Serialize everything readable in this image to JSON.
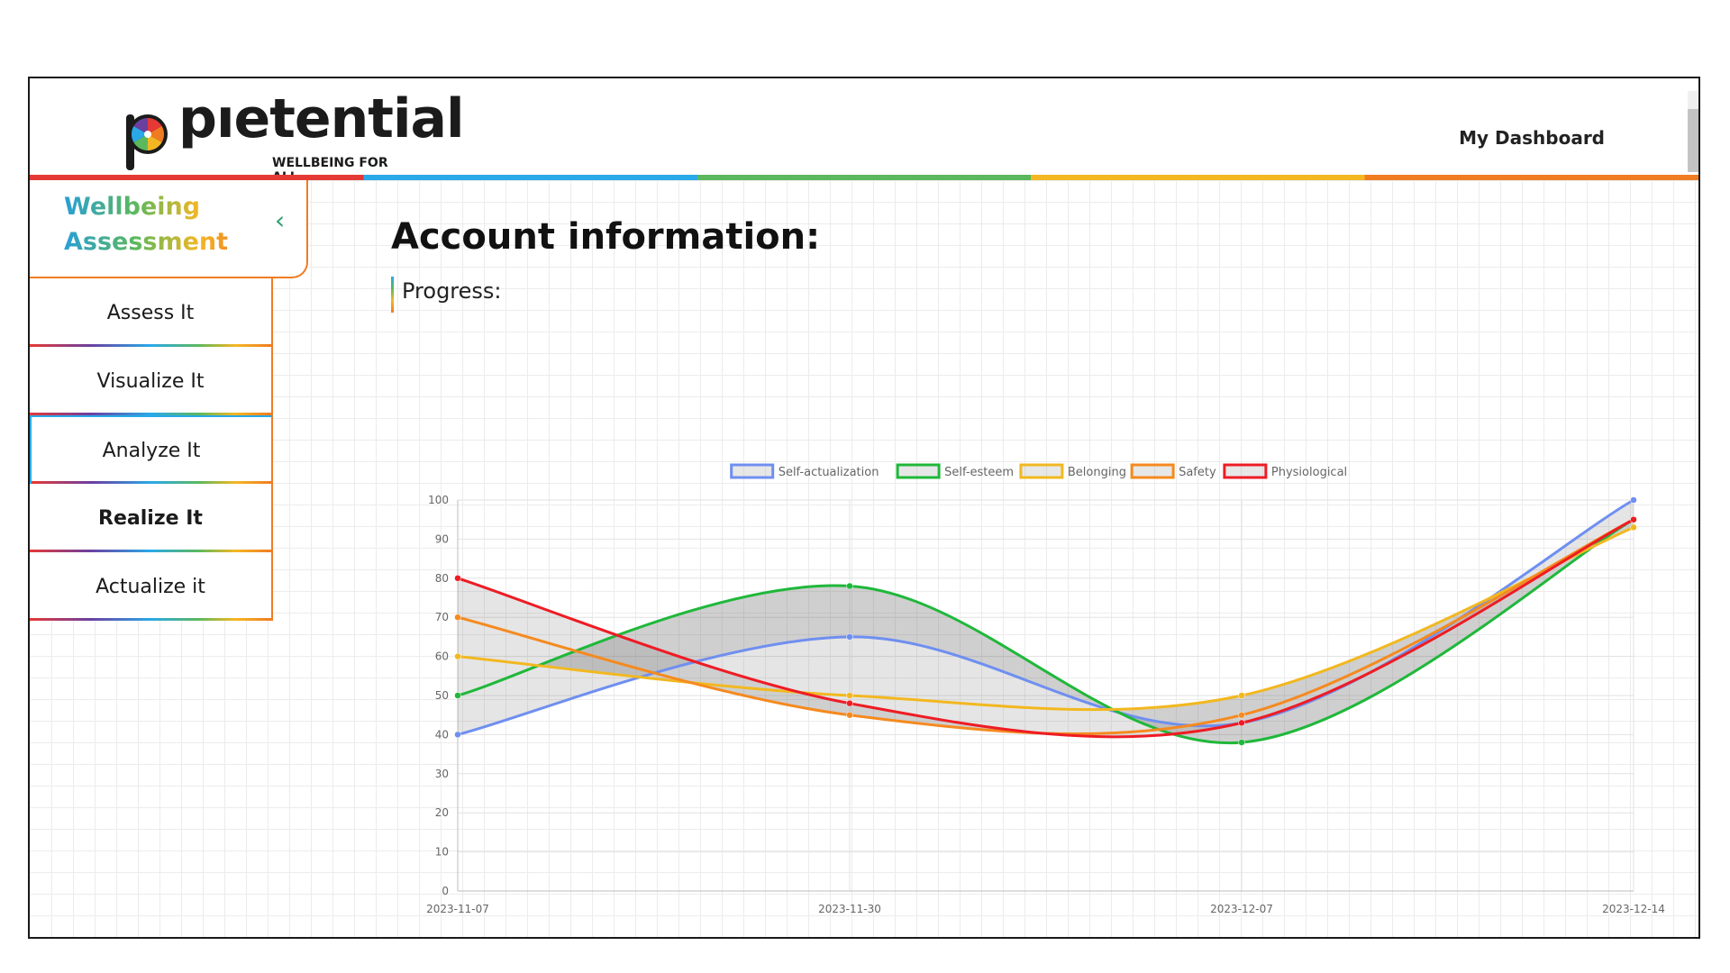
{
  "header": {
    "logo_text": "pıetential",
    "tagline": "WELLBEING FOR ALL.",
    "dashboard_link": "My Dashboard"
  },
  "sidebar": {
    "title_line1": "Wellbeing",
    "title_line2": "Assessment",
    "collapse_icon": "chevron-left-icon",
    "items": [
      {
        "label": "Assess It"
      },
      {
        "label": "Visualize It"
      },
      {
        "label": "Analyze It"
      },
      {
        "label": "Realize It"
      },
      {
        "label": "Actualize it"
      }
    ]
  },
  "main": {
    "title": "Account information:",
    "section_label": "Progress:"
  },
  "colors": {
    "red": "#e53935",
    "blue": "#29a9e8",
    "green": "#5cb85c",
    "yellow": "#f4b724",
    "orange": "#f07c22"
  },
  "chart_data": {
    "type": "line",
    "x": [
      "2023-11-07",
      "2023-11-30",
      "2023-12-07",
      "2023-12-14"
    ],
    "ylim": [
      0,
      100
    ],
    "yticks": [
      0,
      10,
      20,
      30,
      40,
      50,
      60,
      70,
      80,
      90,
      100
    ],
    "legend_position": "top-center",
    "grid": true,
    "series": [
      {
        "name": "Self-actualization",
        "color": "#6f8ff0",
        "values": [
          40,
          65,
          43,
          100
        ]
      },
      {
        "name": "Self-esteem",
        "color": "#1fb83a",
        "values": [
          50,
          78,
          38,
          95
        ]
      },
      {
        "name": "Belonging",
        "color": "#f2b820",
        "values": [
          60,
          50,
          50,
          93
        ]
      },
      {
        "name": "Safety",
        "color": "#f58a1f",
        "values": [
          70,
          45,
          45,
          95
        ]
      },
      {
        "name": "Physiological",
        "color": "#ee1c24",
        "values": [
          80,
          48,
          43,
          95
        ]
      }
    ]
  }
}
